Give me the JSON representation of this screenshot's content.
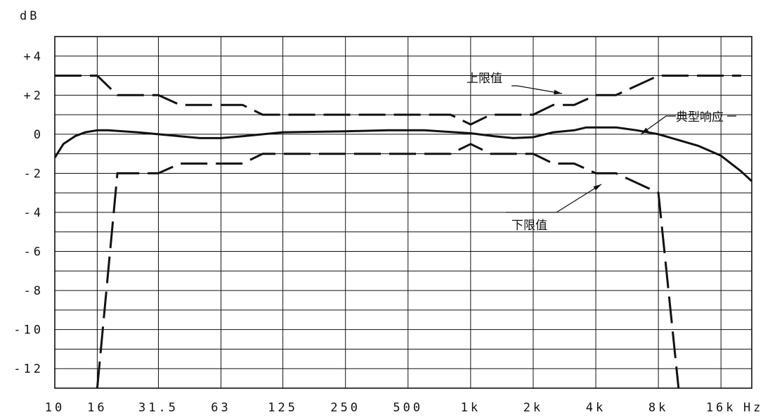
{
  "chart_data": {
    "type": "line",
    "y_unit": "dB",
    "x_unit": "Hz",
    "x_scale": "log",
    "grid": true,
    "ylim": [
      -13,
      5
    ],
    "x_ticks": [
      {
        "hz": 10,
        "label": "10"
      },
      {
        "hz": 16,
        "label": "16"
      },
      {
        "hz": 31.5,
        "label": "31.5"
      },
      {
        "hz": 63,
        "label": "63"
      },
      {
        "hz": 125,
        "label": "125"
      },
      {
        "hz": 250,
        "label": "250"
      },
      {
        "hz": 500,
        "label": "500"
      },
      {
        "hz": 1000,
        "label": "1k"
      },
      {
        "hz": 2000,
        "label": "2k"
      },
      {
        "hz": 4000,
        "label": "4k"
      },
      {
        "hz": 8000,
        "label": "8k"
      },
      {
        "hz": 16000,
        "label": "16k"
      },
      {
        "hz": 32000,
        "label": "Hz"
      }
    ],
    "y_ticks": [
      {
        "v": 4,
        "label": "+4"
      },
      {
        "v": 2,
        "label": "+2"
      },
      {
        "v": 0,
        "label": "0"
      },
      {
        "v": -2,
        "label": "-2"
      },
      {
        "v": -4,
        "label": "-4"
      },
      {
        "v": -6,
        "label": "-6"
      },
      {
        "v": -8,
        "label": "-8"
      },
      {
        "v": -10,
        "label": "-10"
      },
      {
        "v": -12,
        "label": "-12"
      }
    ],
    "series": [
      {
        "name": "上限值",
        "style": "dashed",
        "points": [
          [
            10,
            3
          ],
          [
            16,
            3
          ],
          [
            20,
            2
          ],
          [
            31.5,
            2
          ],
          [
            40,
            1.5
          ],
          [
            63,
            1.5
          ],
          [
            80,
            1.5
          ],
          [
            100,
            1
          ],
          [
            200,
            1
          ],
          [
            400,
            1
          ],
          [
            800,
            1
          ],
          [
            1000,
            0.5
          ],
          [
            1250,
            1
          ],
          [
            2000,
            1
          ],
          [
            2500,
            1.5
          ],
          [
            3150,
            1.5
          ],
          [
            4000,
            2
          ],
          [
            5000,
            2
          ],
          [
            8000,
            3
          ],
          [
            10000,
            3
          ],
          [
            20000,
            3
          ]
        ]
      },
      {
        "name": "下限值",
        "style": "dashed",
        "points": [
          [
            16,
            -13
          ],
          [
            20,
            -2
          ],
          [
            31.5,
            -2
          ],
          [
            40,
            -1.5
          ],
          [
            63,
            -1.5
          ],
          [
            80,
            -1.5
          ],
          [
            100,
            -1
          ],
          [
            200,
            -1
          ],
          [
            400,
            -1
          ],
          [
            800,
            -1
          ],
          [
            1000,
            -0.5
          ],
          [
            1250,
            -1
          ],
          [
            2000,
            -1
          ],
          [
            2500,
            -1.5
          ],
          [
            3150,
            -1.5
          ],
          [
            4000,
            -2
          ],
          [
            5000,
            -2
          ],
          [
            8000,
            -3
          ],
          [
            10000,
            -13
          ]
        ]
      },
      {
        "name": "典型响应",
        "style": "solid",
        "points": [
          [
            10,
            -1.2
          ],
          [
            11,
            -0.5
          ],
          [
            12.5,
            -0.1
          ],
          [
            14,
            0.1
          ],
          [
            16,
            0.2
          ],
          [
            18,
            0.2
          ],
          [
            25,
            0.1
          ],
          [
            31.5,
            0
          ],
          [
            40,
            -0.1
          ],
          [
            50,
            -0.2
          ],
          [
            63,
            -0.2
          ],
          [
            80,
            -0.1
          ],
          [
            125,
            0.1
          ],
          [
            250,
            0.15
          ],
          [
            400,
            0.2
          ],
          [
            600,
            0.2
          ],
          [
            1000,
            0.05
          ],
          [
            1300,
            -0.1
          ],
          [
            1600,
            -0.2
          ],
          [
            2000,
            -0.15
          ],
          [
            2500,
            0.1
          ],
          [
            3150,
            0.2
          ],
          [
            3600,
            0.35
          ],
          [
            5000,
            0.35
          ],
          [
            6300,
            0.2
          ],
          [
            8000,
            0
          ],
          [
            10000,
            -0.3
          ],
          [
            12500,
            -0.6
          ],
          [
            16000,
            -1.1
          ],
          [
            20000,
            -1.9
          ],
          [
            22500,
            -2.4
          ]
        ]
      }
    ]
  }
}
